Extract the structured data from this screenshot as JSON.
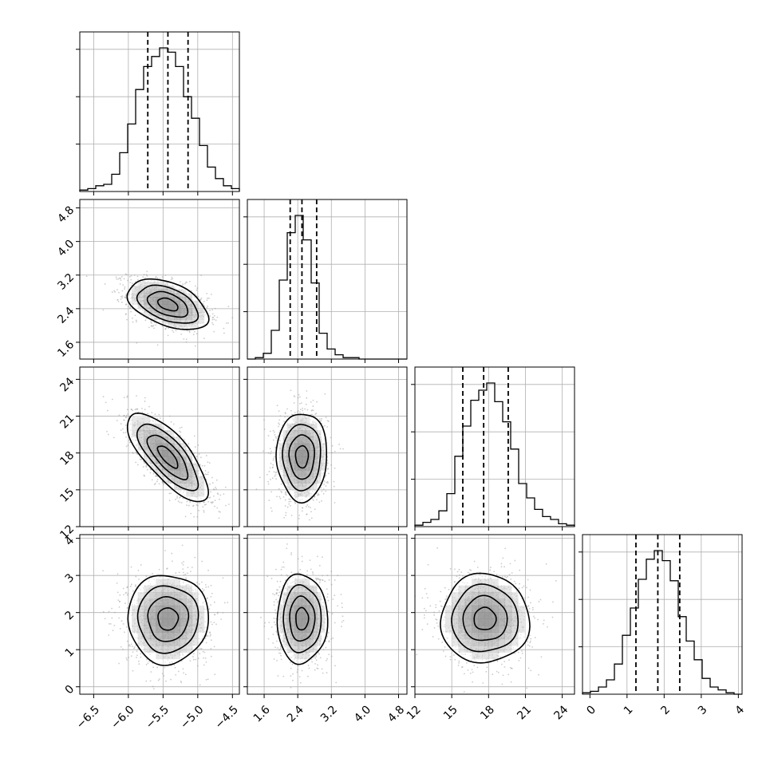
{
  "chart_data": {
    "type": "corner",
    "grid": true,
    "quantile_lines": "dashed at 16/50/84 percentiles",
    "params": [
      {
        "range": [
          -6.7,
          -4.4
        ],
        "ticks": [
          -6.5,
          -6.0,
          -5.5,
          -5.0,
          -4.5
        ],
        "tick_labels": [
          "−6.5",
          "−6.0",
          "−5.5",
          "−5.0",
          "−4.5"
        ],
        "quantiles": [
          -5.72,
          -5.43,
          -5.14
        ],
        "mean": -5.43,
        "sd": 0.29,
        "hist": {
          "edges": [
            -6.7,
            -6.585,
            -6.47,
            -6.355,
            -6.24,
            -6.125,
            -6.01,
            -5.895,
            -5.78,
            -5.665,
            -5.55,
            -5.435,
            -5.32,
            -5.205,
            -5.09,
            -4.975,
            -4.86,
            -4.745,
            -4.63,
            -4.515,
            -4.4
          ],
          "counts": [
            0.01,
            0.02,
            0.04,
            0.05,
            0.12,
            0.27,
            0.47,
            0.71,
            0.87,
            0.94,
            1.0,
            0.97,
            0.87,
            0.66,
            0.51,
            0.32,
            0.17,
            0.09,
            0.04,
            0.02
          ]
        }
      },
      {
        "range": [
          1.2,
          5.0
        ],
        "ticks": [
          1.6,
          2.4,
          3.2,
          4.0,
          4.8
        ],
        "tick_labels": [
          "1.6",
          "2.4",
          "3.2",
          "4.0",
          "4.8"
        ],
        "quantiles": [
          2.22,
          2.5,
          2.85
        ],
        "mean": 2.5,
        "sd": 0.3,
        "hist": {
          "edges": [
            1.2,
            1.39,
            1.58,
            1.77,
            1.96,
            2.15,
            2.34,
            2.53,
            2.72,
            2.91,
            3.1,
            3.29,
            3.48,
            3.67,
            3.86,
            4.05,
            4.24,
            4.43,
            4.62,
            4.81,
            5.0
          ],
          "counts": [
            0.0,
            0.01,
            0.04,
            0.2,
            0.55,
            0.88,
            1.0,
            0.83,
            0.53,
            0.18,
            0.07,
            0.03,
            0.01,
            0.01,
            0.0,
            0.0,
            0.0,
            0.0,
            0.0,
            0.0
          ]
        }
      },
      {
        "range": [
          12.0,
          25.0
        ],
        "ticks": [
          12,
          15,
          18,
          21,
          24
        ],
        "tick_labels": [
          "12",
          "15",
          "18",
          "21",
          "24"
        ],
        "quantiles": [
          15.9,
          17.6,
          19.6
        ],
        "mean": 17.7,
        "sd": 1.8,
        "hist": {
          "edges": [
            12.0,
            12.65,
            13.3,
            13.95,
            14.6,
            15.25,
            15.9,
            16.55,
            17.2,
            17.85,
            18.5,
            19.15,
            19.8,
            20.45,
            21.1,
            21.75,
            22.4,
            23.05,
            23.7,
            24.35,
            25.0
          ],
          "counts": [
            0.01,
            0.03,
            0.05,
            0.11,
            0.23,
            0.49,
            0.7,
            0.88,
            0.95,
            1.0,
            0.87,
            0.73,
            0.54,
            0.3,
            0.2,
            0.12,
            0.07,
            0.05,
            0.02,
            0.01
          ]
        }
      },
      {
        "range": [
          -0.2,
          4.1
        ],
        "ticks": [
          0,
          1,
          2,
          3,
          4
        ],
        "tick_labels": [
          "0",
          "1",
          "2",
          "3",
          "4"
        ],
        "quantiles": [
          1.24,
          1.83,
          2.42
        ],
        "mean": 1.83,
        "sd": 0.6,
        "hist": {
          "edges": [
            -0.2,
            0.015,
            0.23,
            0.445,
            0.66,
            0.875,
            1.09,
            1.305,
            1.52,
            1.735,
            1.95,
            2.165,
            2.38,
            2.595,
            2.81,
            3.025,
            3.24,
            3.455,
            3.67,
            3.885,
            4.1
          ],
          "counts": [
            0.01,
            0.02,
            0.05,
            0.1,
            0.21,
            0.41,
            0.6,
            0.8,
            0.94,
            1.0,
            0.93,
            0.79,
            0.54,
            0.37,
            0.24,
            0.11,
            0.05,
            0.03,
            0.01,
            0.0
          ]
        }
      }
    ],
    "pairs": [
      {
        "row": 1,
        "col": 0,
        "correlation": -0.45,
        "contour_sigma": [
          0.5,
          1.0,
          1.5,
          2.0
        ]
      },
      {
        "row": 2,
        "col": 0,
        "correlation": -0.75,
        "contour_sigma": [
          0.5,
          1.0,
          1.5,
          2.0
        ]
      },
      {
        "row": 2,
        "col": 1,
        "correlation": 0.0,
        "contour_sigma": [
          0.5,
          1.0,
          1.5,
          2.0
        ]
      },
      {
        "row": 3,
        "col": 0,
        "correlation": 0.0,
        "contour_sigma": [
          0.5,
          1.0,
          1.5,
          2.0
        ]
      },
      {
        "row": 3,
        "col": 1,
        "correlation": 0.0,
        "contour_sigma": [
          0.5,
          1.0,
          1.5,
          2.0
        ]
      },
      {
        "row": 3,
        "col": 2,
        "correlation": 0.0,
        "contour_sigma": [
          0.5,
          1.0,
          1.5,
          2.0
        ]
      }
    ],
    "colors": {
      "line": "#000000",
      "grid": "#b0b0b0",
      "scatter": "#9a9a9a",
      "density": "#000000"
    }
  }
}
